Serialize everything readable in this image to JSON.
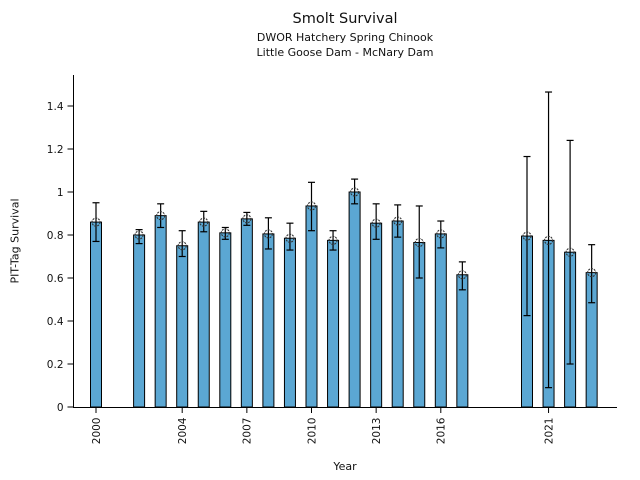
{
  "figure": {
    "title": "Smolt Survival",
    "subtitle_line1": "DWOR Hatchery Spring Chinook",
    "subtitle_line2": "Little Goose Dam - McNary Dam"
  },
  "chart_data": {
    "type": "bar",
    "title": "Smolt Survival",
    "subtitle1": "DWOR Hatchery Spring Chinook",
    "subtitle2": "Little Goose Dam - McNary Dam",
    "xlabel": "Year",
    "ylabel": "PIT-Tag Survival",
    "categories": [
      2000,
      2002,
      2003,
      2004,
      2005,
      2006,
      2007,
      2008,
      2009,
      2010,
      2011,
      2012,
      2013,
      2014,
      2015,
      2016,
      2017,
      2020,
      2021,
      2022,
      2023
    ],
    "values": [
      0.86,
      0.8,
      0.89,
      0.75,
      0.86,
      0.81,
      0.875,
      0.805,
      0.785,
      0.935,
      0.775,
      1.0,
      0.855,
      0.865,
      0.765,
      0.805,
      0.615,
      0.795,
      0.775,
      0.72,
      0.625
    ],
    "error_low": [
      0.77,
      0.76,
      0.835,
      0.7,
      0.815,
      0.78,
      0.845,
      0.735,
      0.73,
      0.82,
      0.73,
      0.945,
      0.78,
      0.79,
      0.6,
      0.74,
      0.545,
      0.425,
      0.09,
      0.2,
      0.485
    ],
    "error_high": [
      0.95,
      0.825,
      0.945,
      0.82,
      0.91,
      0.835,
      0.905,
      0.88,
      0.855,
      1.045,
      0.82,
      1.06,
      0.945,
      0.94,
      0.935,
      0.865,
      0.675,
      1.165,
      1.465,
      1.24,
      0.755
    ],
    "missing_years": [
      2001,
      2018,
      2019
    ],
    "xticks": [
      2000,
      2004,
      2007,
      2010,
      2013,
      2016,
      2021
    ],
    "yticks": [
      0,
      0.2,
      0.4,
      0.6,
      0.8,
      1,
      1.2,
      1.4
    ],
    "ylim": [
      0,
      1.54
    ],
    "grid": false,
    "legend": "none",
    "error_bars": true,
    "marker": "open-circle",
    "bar_color": "#5ba7d3",
    "bar_edge_color": "#000000",
    "error_color": "#000000",
    "axis_color": "#000000",
    "background": "#ffffff"
  }
}
